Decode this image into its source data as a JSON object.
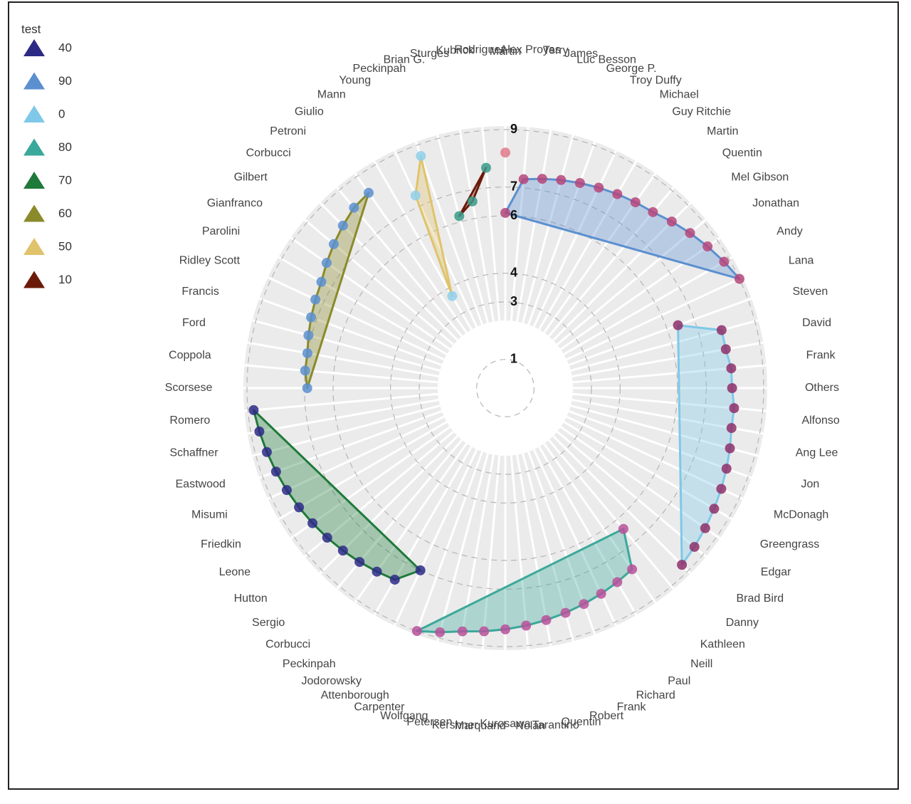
{
  "chart_data": {
    "type": "radar",
    "legend_title": "test",
    "ylim": [
      0,
      9
    ],
    "yticks": [
      1,
      3,
      4,
      6,
      7,
      9
    ],
    "grid": true,
    "legend": "upper left",
    "categories": [
      "Martin",
      "Alex Proyas",
      "Terry",
      "James",
      "Luc Besson",
      "George P.",
      "Troy Duffy",
      "Michael",
      "Guy Ritchie",
      "Martin",
      "Quentin",
      "Mel Gibson",
      "Jonathan",
      "Andy",
      "Lana",
      "Steven",
      "David",
      "Frank",
      "Others",
      "Alfonso",
      "Ang Lee",
      "Jon",
      "McDonagh",
      "Greengrass",
      "Edgar",
      "Brad Bird",
      "Danny",
      "Kathleen",
      "Neill",
      "Paul",
      "Richard",
      "Frank",
      "Robert",
      "Quentin",
      "Tarantino",
      "Nolan",
      "Kurosawa",
      "Marquand",
      "Kershner",
      "Petersen",
      "Wolfgang",
      "Carpenter",
      "Attenborough",
      "Jodorowsky",
      "Peckinpah",
      "Corbucci",
      "Sergio",
      "Hutton",
      "Leone",
      "Friedkin",
      "Misumi",
      "Eastwood",
      "Schaffner",
      "Romero",
      "Scorsese",
      "Coppola",
      "Ford",
      "Francis",
      "Ridley Scott",
      "Parolini",
      "Gianfranco",
      "Gilbert",
      "Corbucci",
      "Petroni",
      "Giulio",
      "Mann",
      "Young",
      "Peckinpah",
      "Brian G.",
      "Sturges",
      "Kubrick",
      "Rodriguez"
    ],
    "series": [
      {
        "name": "40",
        "color": "#2d2a86",
        "marker_color": "#e07a8a",
        "values": [
          8.2,
          null,
          null,
          null,
          null,
          null,
          null,
          null,
          null,
          null,
          null,
          null,
          null,
          null,
          null,
          null,
          null,
          null,
          null,
          null,
          null,
          null,
          null,
          null,
          null,
          null,
          null,
          null,
          null,
          null,
          null,
          null,
          null,
          null,
          null,
          null,
          null,
          null,
          null,
          null,
          null,
          null,
          null,
          null,
          null,
          null,
          null,
          null,
          null,
          null,
          null,
          null,
          null,
          null,
          null,
          null,
          null,
          null,
          null,
          null,
          null,
          null,
          null,
          null,
          null,
          null,
          null,
          null,
          null,
          null,
          null,
          null
        ]
      },
      {
        "name": "90",
        "color": "#5b8fd0",
        "marker_color": "#b5457a",
        "values": [
          6.1,
          7.3,
          7.4,
          7.5,
          7.6,
          7.7,
          7.8,
          7.9,
          8.0,
          8.2,
          8.4,
          8.6,
          8.8,
          9.0,
          null,
          null,
          null,
          null,
          null,
          null,
          null,
          null,
          null,
          null,
          null,
          null,
          null,
          null,
          null,
          null,
          null,
          null,
          null,
          null,
          null,
          null,
          null,
          null,
          null,
          null,
          null,
          null,
          null,
          null,
          null,
          null,
          null,
          null,
          null,
          null,
          null,
          null,
          null,
          null,
          null,
          null,
          null,
          null,
          null,
          null,
          null,
          null,
          null,
          null,
          null,
          null,
          null,
          null,
          null,
          null,
          null,
          null
        ]
      },
      {
        "name": "0",
        "color": "#7fc8e8",
        "marker_color": "#8e2f6a",
        "values": [
          null,
          null,
          null,
          null,
          null,
          null,
          null,
          null,
          null,
          null,
          null,
          null,
          null,
          null,
          6.4,
          7.8,
          7.8,
          7.9,
          7.9,
          8.0,
          8.0,
          8.1,
          8.2,
          8.3,
          8.4,
          8.5,
          8.6,
          8.7,
          null,
          null,
          null,
          null,
          null,
          null,
          null,
          null,
          null,
          null,
          null,
          null,
          null,
          null,
          null,
          null,
          null,
          null,
          null,
          null,
          null,
          null,
          null,
          null,
          null,
          null,
          null,
          null,
          null,
          null,
          null,
          null,
          null,
          null,
          null,
          null,
          null,
          null,
          null,
          null,
          null,
          null,
          null,
          null
        ]
      },
      {
        "name": "80",
        "color": "#3aa89a",
        "marker_color": "#b8509a",
        "values": [
          null,
          null,
          null,
          null,
          null,
          null,
          null,
          null,
          null,
          null,
          null,
          null,
          null,
          null,
          null,
          null,
          null,
          null,
          null,
          null,
          null,
          null,
          null,
          null,
          null,
          null,
          null,
          null,
          6.4,
          7.7,
          7.8,
          7.9,
          8.0,
          8.1,
          8.2,
          8.3,
          8.4,
          8.5,
          8.6,
          8.8,
          9.0,
          null,
          null,
          null,
          null,
          null,
          null,
          null,
          null,
          null,
          null,
          null,
          null,
          null,
          null,
          null,
          null,
          null,
          null,
          null,
          null,
          null,
          null,
          null,
          null,
          null,
          null,
          null,
          null,
          null,
          null,
          null
        ]
      },
      {
        "name": "70",
        "color": "#1e7a3a",
        "marker_color": "#2d2a86",
        "values": [
          null,
          null,
          null,
          null,
          null,
          null,
          null,
          null,
          null,
          null,
          null,
          null,
          null,
          null,
          null,
          null,
          null,
          null,
          null,
          null,
          null,
          null,
          null,
          null,
          null,
          null,
          null,
          null,
          null,
          null,
          null,
          null,
          null,
          null,
          null,
          null,
          null,
          null,
          null,
          null,
          null,
          7.0,
          7.7,
          7.8,
          7.9,
          8.0,
          8.1,
          8.2,
          8.3,
          8.4,
          8.5,
          8.6,
          8.7,
          8.8,
          null,
          null,
          null,
          null,
          null,
          null,
          null,
          null,
          null,
          null,
          null,
          null,
          null,
          null,
          null,
          null,
          null,
          null
        ]
      },
      {
        "name": "60",
        "color": "#8a8a2a",
        "marker_color": "#5b8fd0",
        "values": [
          null,
          null,
          null,
          null,
          null,
          null,
          null,
          null,
          null,
          null,
          null,
          null,
          null,
          null,
          null,
          null,
          null,
          null,
          null,
          null,
          null,
          null,
          null,
          null,
          null,
          null,
          null,
          null,
          null,
          null,
          null,
          null,
          null,
          null,
          null,
          null,
          null,
          null,
          null,
          null,
          null,
          null,
          null,
          null,
          null,
          null,
          null,
          null,
          null,
          null,
          null,
          null,
          null,
          null,
          6.9,
          7.0,
          7.0,
          7.1,
          7.2,
          7.3,
          7.4,
          7.6,
          7.8,
          8.0,
          8.2,
          8.3,
          null,
          null,
          null,
          null,
          null,
          null
        ]
      },
      {
        "name": "50",
        "color": "#e0c36a",
        "marker_color": "#8fd0ec",
        "values": [
          null,
          null,
          null,
          null,
          null,
          null,
          null,
          null,
          null,
          null,
          null,
          null,
          null,
          null,
          null,
          null,
          null,
          null,
          null,
          null,
          null,
          null,
          null,
          null,
          null,
          null,
          null,
          null,
          null,
          null,
          null,
          null,
          null,
          null,
          null,
          null,
          null,
          null,
          null,
          null,
          null,
          null,
          null,
          null,
          null,
          null,
          null,
          null,
          null,
          null,
          null,
          null,
          null,
          null,
          null,
          null,
          null,
          null,
          null,
          null,
          null,
          null,
          null,
          null,
          null,
          null,
          3.7,
          7.4,
          8.6,
          null,
          null,
          null
        ]
      },
      {
        "name": "10",
        "color": "#6b1a0a",
        "marker_color": "#3a9a88",
        "values": [
          null,
          null,
          null,
          null,
          null,
          null,
          null,
          null,
          null,
          null,
          null,
          null,
          null,
          null,
          null,
          null,
          null,
          null,
          null,
          null,
          null,
          null,
          null,
          null,
          null,
          null,
          null,
          null,
          null,
          null,
          null,
          null,
          null,
          null,
          null,
          null,
          null,
          null,
          null,
          null,
          null,
          null,
          null,
          null,
          null,
          null,
          null,
          null,
          null,
          null,
          null,
          null,
          null,
          null,
          null,
          null,
          null,
          null,
          null,
          null,
          null,
          null,
          null,
          null,
          null,
          null,
          null,
          null,
          null,
          6.2,
          6.6,
          7.7
        ]
      }
    ]
  }
}
